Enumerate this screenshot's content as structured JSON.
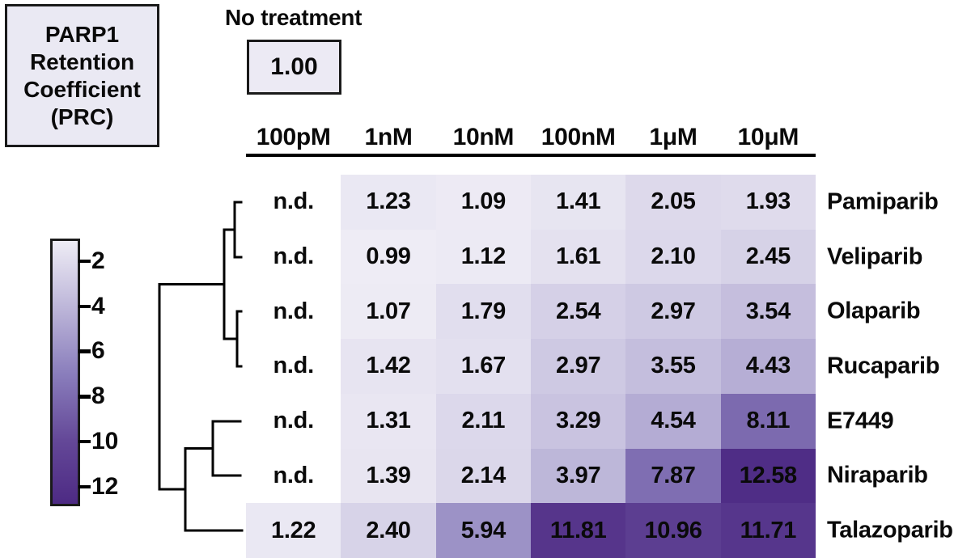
{
  "title_box": {
    "lines": [
      "PARP1",
      "Retention",
      "Coefficient",
      "(PRC)"
    ]
  },
  "no_treatment": {
    "label": "No treatment",
    "value": "1.00"
  },
  "chart_data": {
    "type": "heatmap",
    "title": "PARP1 Retention Coefficient (PRC)",
    "reference_condition": {
      "label": "No treatment",
      "value": "1.00"
    },
    "columns": [
      "100pM",
      "1nM",
      "10nM",
      "100nM",
      "1μM",
      "10μM"
    ],
    "rows": [
      "Pamiparib",
      "Veliparib",
      "Olaparib",
      "Rucaparib",
      "E7449",
      "Niraparib",
      "Talazoparib"
    ],
    "values": [
      [
        "n.d.",
        "1.23",
        "1.09",
        "1.41",
        "2.05",
        "1.93"
      ],
      [
        "n.d.",
        "0.99",
        "1.12",
        "1.61",
        "2.10",
        "2.45"
      ],
      [
        "n.d.",
        "1.07",
        "1.79",
        "2.54",
        "2.97",
        "3.54"
      ],
      [
        "n.d.",
        "1.42",
        "1.67",
        "2.97",
        "3.55",
        "4.43"
      ],
      [
        "n.d.",
        "1.31",
        "2.11",
        "3.29",
        "4.54",
        "8.11"
      ],
      [
        "n.d.",
        "1.39",
        "2.14",
        "3.97",
        "7.87",
        "12.58"
      ],
      [
        "1.22",
        "2.40",
        "5.94",
        "11.81",
        "10.96",
        "11.71"
      ]
    ],
    "na_text": "n.d.",
    "colorbar": {
      "ticks": [
        2,
        4,
        6,
        8,
        10,
        12
      ],
      "domain": [
        1,
        12.87
      ],
      "stops": [
        {
          "v": 1,
          "c": "#eeecf5"
        },
        {
          "v": 4,
          "c": "#bdb6d9"
        },
        {
          "v": 7,
          "c": "#8a7ebc"
        },
        {
          "v": 10,
          "c": "#644898"
        },
        {
          "v": 13,
          "c": "#4c2983"
        }
      ]
    },
    "dendrogram_clusters": "(((Pamiparib,Veliparib),(Olaparib,Rucaparib)),((E7449,Niraparib),Talazoparib))",
    "legend_position": "left",
    "grid": false
  }
}
